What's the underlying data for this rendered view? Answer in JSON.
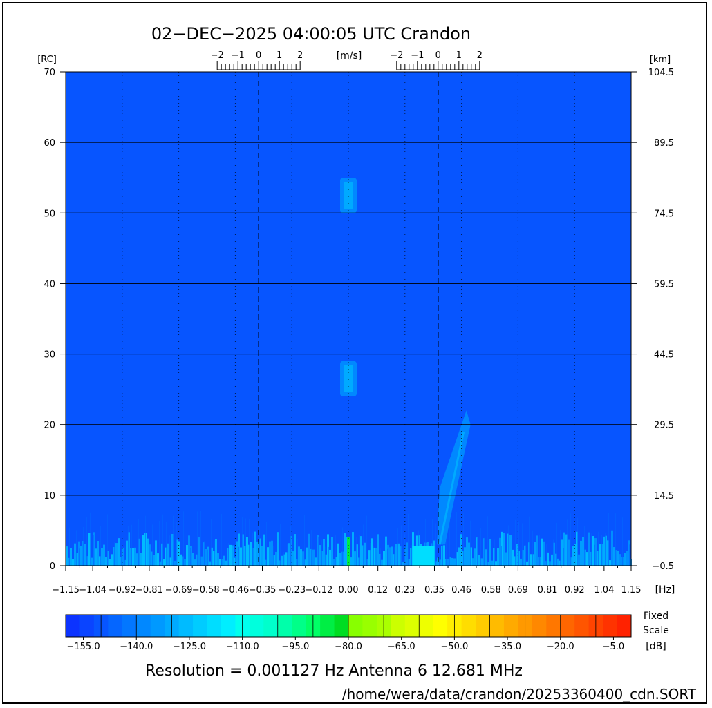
{
  "chart_data": {
    "type": "heatmap",
    "title": "02−DEC−2025 04:00:05 UTC   Crandon",
    "x_unit": "[Hz]",
    "xlim": [
      -1.15,
      1.15
    ],
    "x_ticks": [
      "−1.15",
      "−1.04",
      "−0.92",
      "−0.81",
      "−0.69",
      "−0.58",
      "−0.46",
      "−0.35",
      "−0.23",
      "−0.12",
      "0.00",
      "0.12",
      "0.23",
      "0.35",
      "0.46",
      "0.58",
      "0.69",
      "0.81",
      "0.92",
      "1.04",
      "1.15"
    ],
    "y_left_unit": "[RC]",
    "ylim": [
      0,
      70
    ],
    "y_left_ticks": [
      "0",
      "10",
      "20",
      "30",
      "40",
      "50",
      "60",
      "70"
    ],
    "y_right_unit": "[km]",
    "y_right_ticks": [
      "−0.5",
      "14.5",
      "29.5",
      "44.5",
      "59.5",
      "74.5",
      "89.5",
      "104.5"
    ],
    "top_scale_unit": "[m/s]",
    "top_scale_ticks": [
      "−2",
      "−1",
      "0",
      "1",
      "2"
    ],
    "bragg_lines_hz": [
      -0.365,
      0.365
    ],
    "colorbar": {
      "label_line1": "Fixed",
      "label_line2": "Scale",
      "unit": "[dB]",
      "range_db": [
        -160,
        0
      ],
      "ticks": [
        "−155.0",
        "−140.0",
        "−125.0",
        "−110.0",
        "−95.0",
        "−80.0",
        "−65.0",
        "−50.0",
        "−35.0",
        "−20.0",
        "−5.0"
      ],
      "colors": [
        "#0c33ff",
        "#0a44ff",
        "#0755ff",
        "#0566ff",
        "#0377ff",
        "#0188ff",
        "#0099ff",
        "#00aaff",
        "#00bbff",
        "#00ccff",
        "#00ddff",
        "#00eeff",
        "#00ffee",
        "#00ffdd",
        "#00ffcc",
        "#00ffaa",
        "#00ff88",
        "#00ff66",
        "#00ee44",
        "#00dd22",
        "#88ff00",
        "#99ff00",
        "#aaff00",
        "#ccff00",
        "#ddff00",
        "#eeff00",
        "#ffff00",
        "#ffee00",
        "#ffdd00",
        "#ffcc00",
        "#ffbb00",
        "#ffaa00",
        "#ff9900",
        "#ff8800",
        "#ff7700",
        "#ff6600",
        "#ff5500",
        "#ff4400",
        "#ff3300",
        "#ff2200"
      ]
    },
    "background_level_db": -150,
    "features": [
      {
        "name": "echo-55rc",
        "x_hz": 0.0,
        "y_rc": [
          50,
          55
        ],
        "level_db": -135
      },
      {
        "name": "echo-27rc",
        "x_hz": 0.0,
        "y_rc": [
          24,
          29
        ],
        "level_db": -135
      },
      {
        "name": "positive-bragg-streak",
        "x_hz": [
          0.36,
          0.48
        ],
        "y_rc": [
          3,
          22
        ],
        "level_db": -138
      },
      {
        "name": "zero-doppler-line",
        "x_hz": 0.0,
        "y_rc": [
          0,
          4
        ],
        "level_db": -85
      },
      {
        "name": "near-range-noise",
        "x_hz": [
          -1.15,
          1.15
        ],
        "y_rc": [
          0,
          3
        ],
        "level_db": -125
      }
    ]
  },
  "footer": {
    "resolution_text": "Resolution = 0.001127 Hz   Antenna  6   12.681 MHz",
    "file_path": "/home/wera/data/crandon/20253360400_cdn.SORT"
  },
  "colors": {
    "background": "#0c33ff",
    "axis": "#000000"
  }
}
